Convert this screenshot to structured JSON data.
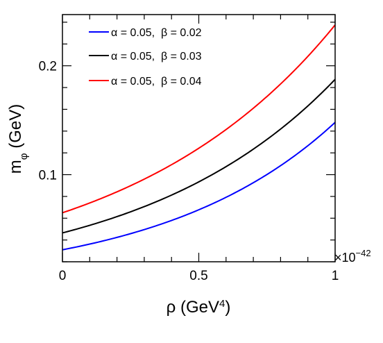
{
  "chart_data": {
    "type": "line",
    "xlabel": {
      "base": "ρ (GeV",
      "sup": "4",
      "close": ")"
    },
    "ylabel": {
      "base": "m",
      "sub": "φ",
      "rest": " (GeV)"
    },
    "x_multiplier": {
      "base": "×10",
      "exp": "−42"
    },
    "xlim": [
      0,
      1
    ],
    "ylim": [
      0.02,
      0.247
    ],
    "x_ticks": [
      {
        "value": 0,
        "label": "0"
      },
      {
        "value": 0.5,
        "label": "0.5"
      },
      {
        "value": 1,
        "label": "1"
      }
    ],
    "y_ticks": [
      {
        "value": 0.1,
        "label": "0.1"
      },
      {
        "value": 0.2,
        "label": "0.2"
      }
    ],
    "legend_position": "top-left",
    "series": [
      {
        "name": "α = 0.05,  β = 0.02",
        "color": "#0000ff",
        "y0": 0.031,
        "y1": 0.148,
        "curve": "exponential"
      },
      {
        "name": "α = 0.05,  β = 0.03",
        "color": "#000000",
        "y0": 0.0465,
        "y1": 0.1875,
        "curve": "exponential"
      },
      {
        "name": "α = 0.05,  β = 0.04",
        "color": "#ff0000",
        "y0": 0.065,
        "y1": 0.2375,
        "curve": "exponential"
      }
    ]
  }
}
